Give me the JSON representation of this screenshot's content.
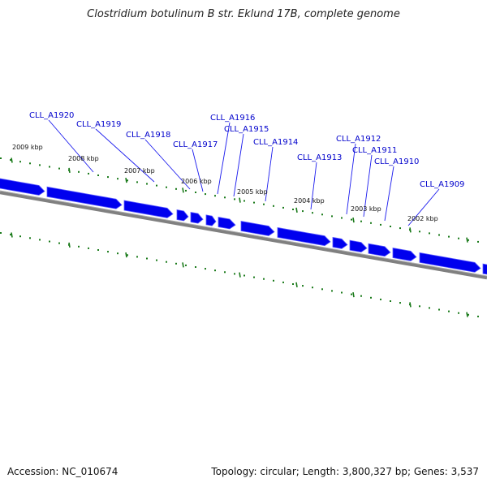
{
  "title": "Clostridium botulinum B str. Eklund 17B, complete genome",
  "footer": {
    "accession": "Accession: NC_010674",
    "topology": "Topology: circular; Length: 3,800,327 bp; Genes: 3,537"
  },
  "colors": {
    "gene": "#0000ee",
    "gene_shade": "#5a5aff",
    "backbone": "#808080",
    "tick": "#1a7a1a",
    "label": "#0000cc"
  },
  "ticks": [
    {
      "kbp": 2009,
      "label": "2009 kbp"
    },
    {
      "kbp": 2008,
      "label": "2008 kbp"
    },
    {
      "kbp": 2007,
      "label": "2007 kbp"
    },
    {
      "kbp": 2006,
      "label": "2006 kbp"
    },
    {
      "kbp": 2005,
      "label": "2005 kbp"
    },
    {
      "kbp": 2004,
      "label": "2004 kbp"
    },
    {
      "kbp": 2003,
      "label": "2003 kbp"
    },
    {
      "kbp": 2002,
      "label": "2002 kbp"
    }
  ],
  "genes": [
    {
      "name": "CLL_A1920"
    },
    {
      "name": "CLL_A1919"
    },
    {
      "name": "CLL_A1918"
    },
    {
      "name": "CLL_A1917"
    },
    {
      "name": "CLL_A1916"
    },
    {
      "name": "CLL_A1915"
    },
    {
      "name": "CLL_A1914"
    },
    {
      "name": "CLL_A1913"
    },
    {
      "name": "CLL_A1912"
    },
    {
      "name": "CLL_A1911"
    },
    {
      "name": "CLL_A1910"
    },
    {
      "name": "CLL_A1909"
    }
  ]
}
